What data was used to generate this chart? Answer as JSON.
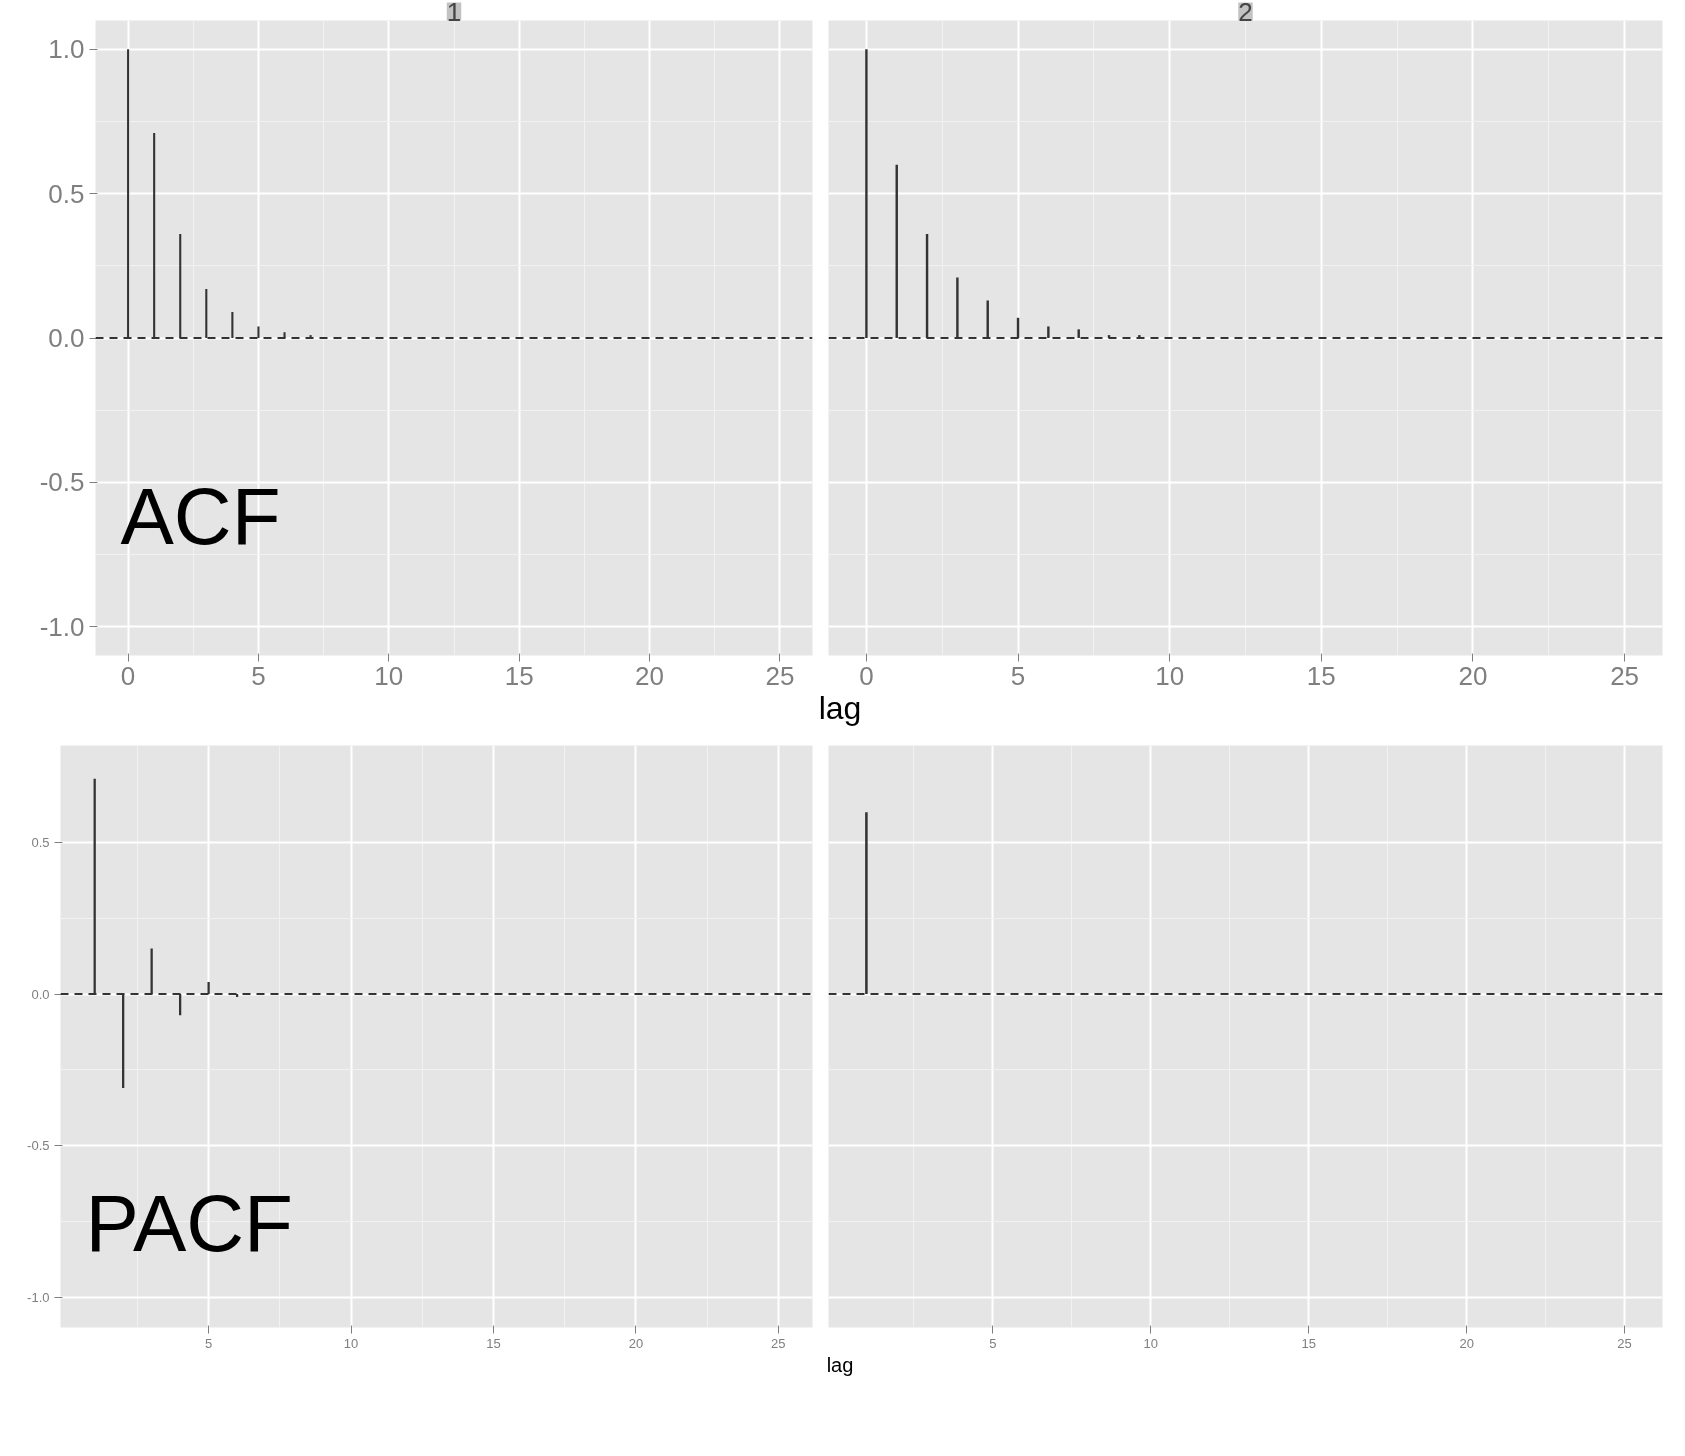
{
  "chart_data": [
    {
      "type": "bar",
      "title": "1",
      "xlabel": "lag",
      "annotations": [
        "ACF"
      ],
      "x": [
        0,
        1,
        2,
        3,
        4,
        5,
        6,
        7,
        8,
        9,
        10,
        11,
        12,
        13,
        14,
        15,
        16,
        17,
        18,
        19,
        20,
        21,
        22,
        23,
        24,
        25
      ],
      "values": [
        1.0,
        0.71,
        0.36,
        0.17,
        0.09,
        0.04,
        0.02,
        0.01,
        0,
        0,
        0,
        0,
        0,
        0,
        0,
        0,
        0,
        0,
        0,
        0,
        0,
        0,
        0,
        0,
        0,
        0
      ],
      "color": "#333333",
      "xlim": [
        -1.25,
        26.25
      ],
      "xticks": [
        0,
        5,
        10,
        15,
        20,
        25
      ],
      "ylim": [
        -1.1,
        1.1
      ],
      "yticks": [
        {
          "value": -1,
          "label": "-1.0"
        },
        -0.5,
        {
          "value": 0,
          "label": "0.0"
        },
        0.5,
        {
          "value": 1,
          "label": "1.0"
        }
      ],
      "ref_lines": [
        {
          "axis": "y",
          "value": 0,
          "line_style": "dashed",
          "color": "#333333"
        }
      ],
      "grid": true
    },
    {
      "type": "bar",
      "title": "2",
      "x": [
        0,
        1,
        2,
        3,
        4,
        5,
        6,
        7,
        8,
        9,
        10,
        11,
        12,
        13,
        14,
        15,
        16,
        17,
        18,
        19,
        20,
        21,
        22,
        23,
        24,
        25
      ],
      "values": [
        1.0,
        0.6,
        0.36,
        0.21,
        0.13,
        0.07,
        0.04,
        0.03,
        0.01,
        0.01,
        0,
        0,
        0,
        0,
        0,
        0,
        0,
        0,
        0,
        0,
        0,
        0,
        0,
        0,
        0,
        0
      ],
      "color": "#333333",
      "xlim": [
        -1.25,
        26.25
      ],
      "xticks": [
        0,
        5,
        10,
        15,
        20,
        25
      ],
      "ylim": [
        -1.1,
        1.1
      ],
      "yticks": [
        -1,
        -0.5,
        0,
        0.5,
        1
      ],
      "ref_lines": [
        {
          "axis": "y",
          "value": 0,
          "line_style": "dashed",
          "color": "#333333"
        }
      ],
      "grid": true,
      "tick_labels": "x"
    },
    {
      "type": "bar",
      "xlabel": "lag",
      "annotations": [
        "PACF"
      ],
      "x": [
        1,
        2,
        3,
        4,
        5,
        6,
        7,
        8,
        9,
        10,
        11,
        12,
        13,
        14,
        15,
        16,
        17,
        18,
        19,
        20,
        21,
        22,
        23,
        24,
        25
      ],
      "values": [
        0.71,
        -0.31,
        0.15,
        -0.07,
        0.04,
        -0.01,
        0,
        0,
        0,
        0,
        0,
        0,
        0,
        0,
        0,
        0,
        0,
        0,
        0,
        0,
        0,
        0,
        0,
        0,
        0
      ],
      "color": "#333333",
      "xlim": [
        -0.2,
        26.2
      ],
      "xticks": [
        5,
        10,
        15,
        20,
        25
      ],
      "ylim": [
        -1.1,
        0.82
      ],
      "yticks": [
        {
          "value": -1,
          "label": "-1.0"
        },
        -0.5,
        {
          "value": 0,
          "label": "0.0"
        },
        0.5
      ],
      "ref_lines": [
        {
          "axis": "y",
          "value": 0,
          "line_style": "dashed",
          "color": "#333333"
        }
      ],
      "grid": true
    },
    {
      "type": "bar",
      "x": [
        1,
        2,
        3,
        4,
        5,
        6,
        7,
        8,
        9,
        10,
        11,
        12,
        13,
        14,
        15,
        16,
        17,
        18,
        19,
        20,
        21,
        22,
        23,
        24,
        25
      ],
      "values": [
        0.6,
        0,
        0,
        0,
        0,
        0,
        0,
        0,
        0,
        0,
        0,
        0,
        0,
        0,
        0,
        0,
        0,
        0,
        0,
        0,
        0,
        0,
        0,
        0,
        0
      ],
      "color": "#333333",
      "xlim": [
        -0.2,
        26.2
      ],
      "xticks": [
        5,
        10,
        15,
        20,
        25
      ],
      "ylim": [
        -1.1,
        0.82
      ],
      "yticks": [
        -1,
        -0.5,
        0,
        0.5
      ],
      "ref_lines": [
        {
          "axis": "y",
          "value": 0,
          "line_style": "dashed",
          "color": "#333333"
        }
      ],
      "grid": true,
      "tick_labels": "x"
    }
  ]
}
